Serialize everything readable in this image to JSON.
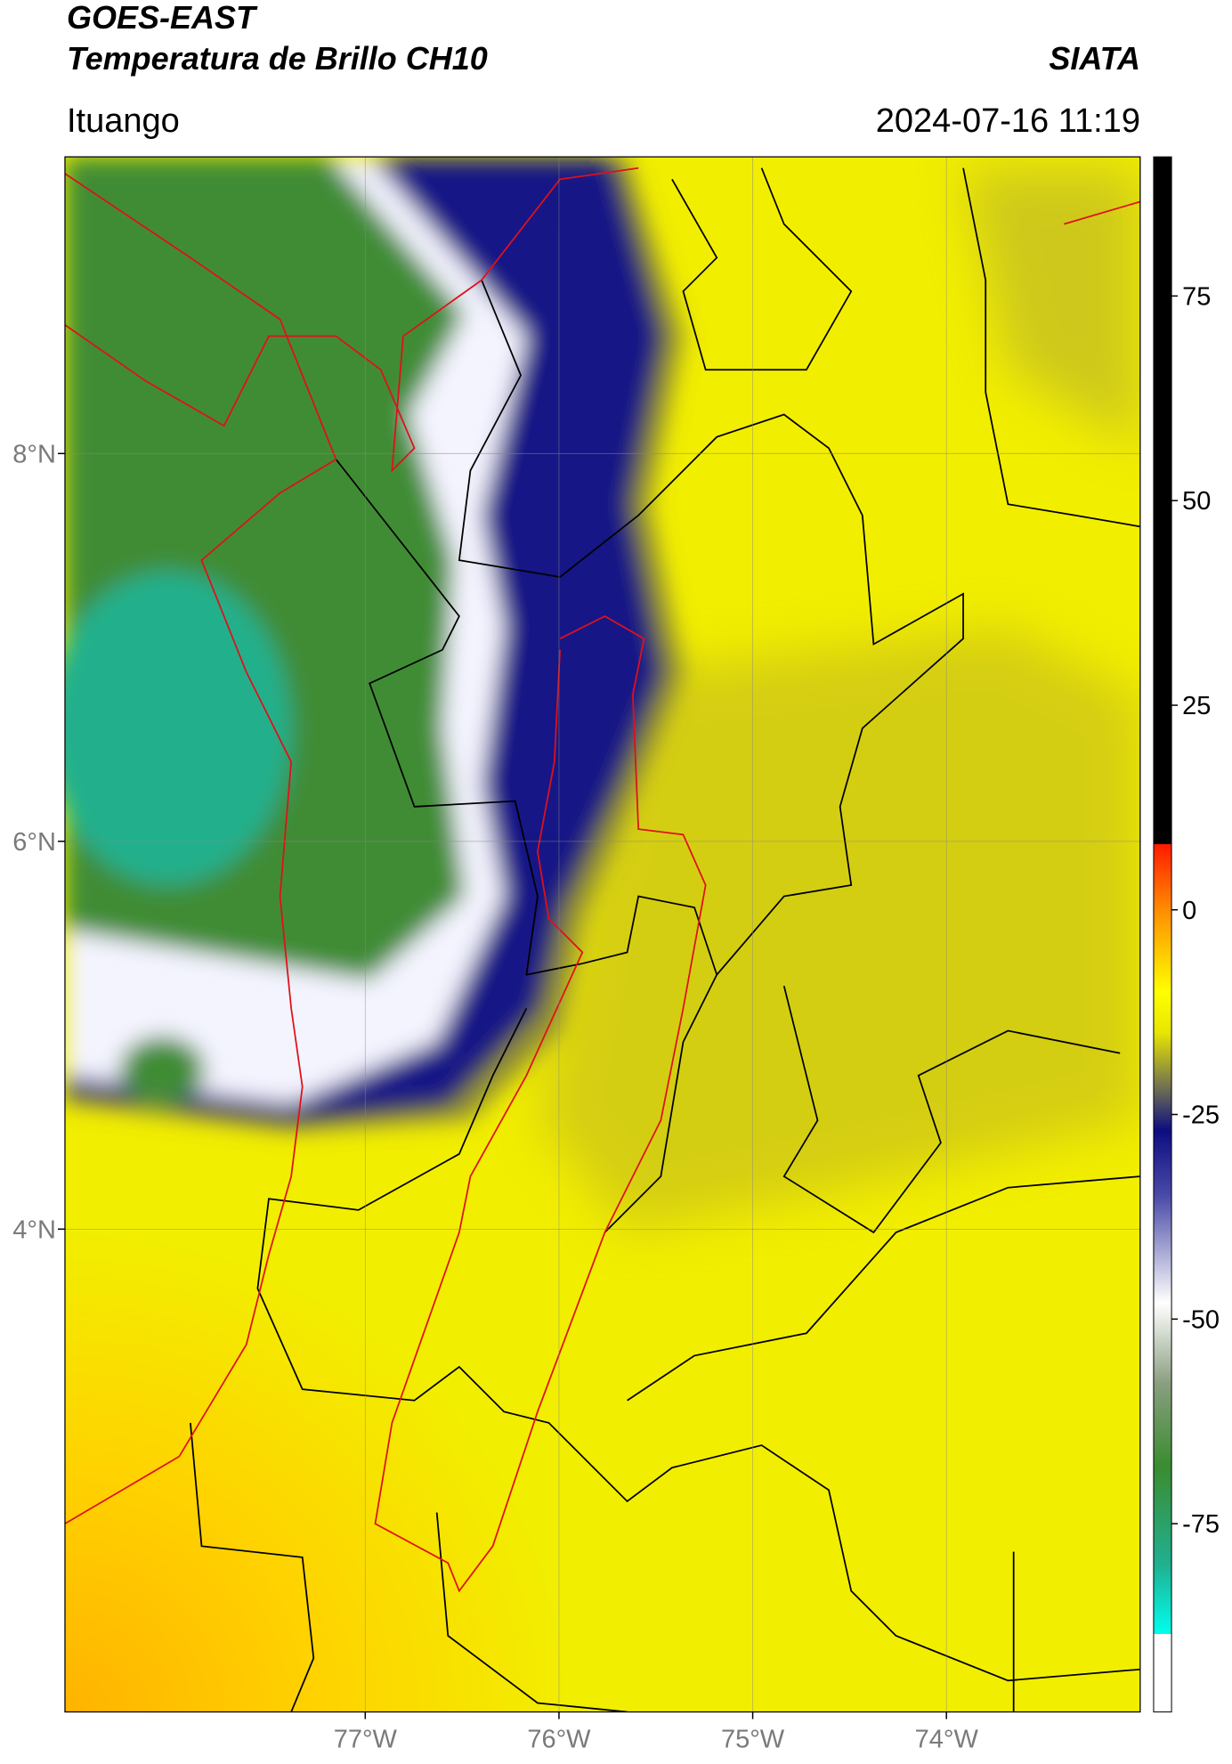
{
  "title": "GOES-EAST",
  "subtitle": "Temperatura de Brillo CH10",
  "brand": "SIATA",
  "location": "Ituango",
  "datetime": "2024-07-16 11:19",
  "map": {
    "xlim": [
      -78.55,
      -73.0
    ],
    "ylim": [
      1.51,
      9.53
    ],
    "xticks": [
      {
        "value": -77,
        "label": "77°W"
      },
      {
        "value": -76,
        "label": "76°W"
      },
      {
        "value": -75,
        "label": "75°W"
      },
      {
        "value": -74,
        "label": "74°W"
      }
    ],
    "yticks": [
      {
        "value": 8,
        "label": "8°N"
      },
      {
        "value": 6,
        "label": "6°N"
      },
      {
        "value": 4,
        "label": "4°N"
      }
    ]
  },
  "colorbar": {
    "clim": [
      -98,
      92
    ],
    "ticks": [
      75,
      50,
      25,
      0,
      -25,
      -50,
      -75
    ]
  }
}
